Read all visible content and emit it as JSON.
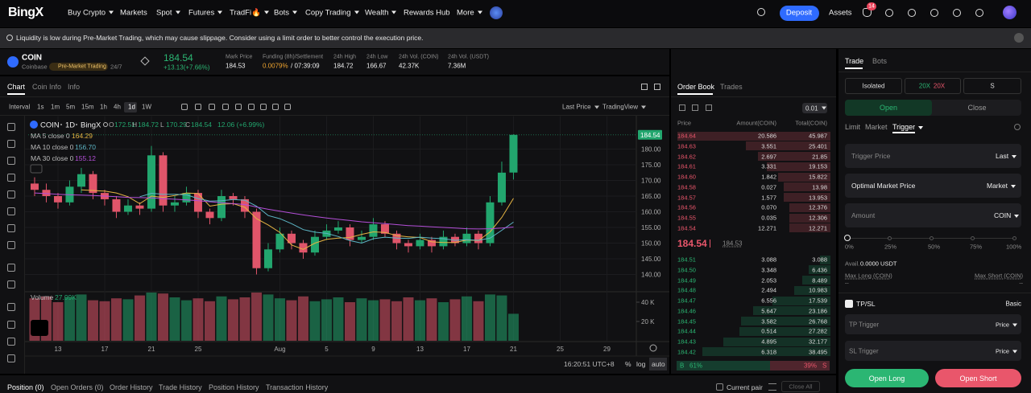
{
  "nav": {
    "logo": "BingX",
    "items": [
      "Buy Crypto",
      "Markets",
      "Spot",
      "Futures",
      "TradFi🔥",
      "Bots",
      "Copy Trading",
      "Wealth",
      "Rewards Hub",
      "More"
    ],
    "deposit": "Deposit",
    "assets": "Assets",
    "badge": "14"
  },
  "notice": {
    "text": "Liquidity is low during Pre-Market Trading, which may cause slippage. Consider using a limit order to better control the execution price."
  },
  "ticker": {
    "symbol": "COIN",
    "exchange": "Coinbase",
    "tag": "Pre-Market Trading",
    "hours": "24/7",
    "price": "184.54",
    "change": "+13.13(+7.66%)",
    "stats": [
      {
        "label": "Mark Price",
        "value": "184.53"
      },
      {
        "label": "Funding (8h)/Settlement",
        "value": "0.0079%",
        "extra": "/ 07:39:09"
      },
      {
        "label": "24h High",
        "value": "184.72"
      },
      {
        "label": "24h Low",
        "value": "166.67"
      },
      {
        "label": "24h Vol. (COIN)",
        "value": "42.37K"
      },
      {
        "label": "24h Vol. (USDT)",
        "value": "7.36M"
      }
    ]
  },
  "chart_panel": {
    "tabs": [
      "Chart",
      "Coin Info",
      "Info"
    ],
    "intervals": [
      "Interval",
      "1s",
      "1m",
      "5m",
      "15m",
      "1h",
      "4h",
      "1d",
      "1W"
    ],
    "price_source": "Last Price",
    "provider": "TradingView",
    "time": "16:20:51 UTC+8",
    "controls": [
      "%",
      "log",
      "auto"
    ]
  },
  "chart_data": {
    "type": "candlestick",
    "symbol": "COIN",
    "interval": "1D",
    "source": "BingX",
    "ohlc": [
      {
        "key": "O",
        "value": "172.51"
      },
      {
        "key": "H",
        "value": "184.72"
      },
      {
        "key": "L",
        "value": "170.29"
      },
      {
        "key": "C",
        "value": "184.54"
      }
    ],
    "change": "12.06 (+6.99%)",
    "open": [
      169,
      167,
      165,
      163,
      168,
      172,
      166,
      164,
      160,
      162,
      161,
      178,
      162,
      163,
      166,
      160,
      158,
      165,
      164,
      160,
      142,
      148,
      153,
      150,
      147,
      152,
      154,
      155,
      151,
      152,
      156,
      153,
      150,
      149,
      151,
      149,
      152,
      150,
      153,
      150,
      163,
      172.51
    ],
    "high": [
      171,
      169,
      166,
      170,
      174,
      173,
      167,
      165,
      164,
      163,
      181,
      179,
      165,
      168,
      167,
      161,
      167,
      166,
      165,
      161,
      150,
      155,
      154,
      151,
      154,
      156,
      157,
      156,
      154,
      158,
      157,
      154,
      151,
      153,
      152,
      154,
      153,
      155,
      154,
      165,
      176,
      184.72
    ],
    "low": [
      165,
      163,
      161,
      162,
      166,
      164,
      162,
      158,
      159,
      159,
      160,
      160,
      160,
      162,
      158,
      156,
      157,
      162,
      158,
      140,
      141,
      147,
      148,
      145,
      146,
      151,
      153,
      149,
      150,
      151,
      152,
      148,
      147,
      148,
      147,
      148,
      149,
      149,
      148,
      149,
      162,
      170.29
    ],
    "close": [
      167,
      165,
      163,
      168,
      172,
      166,
      164,
      160,
      162,
      161,
      178,
      162,
      163,
      166,
      160,
      158,
      165,
      164,
      160,
      142,
      148,
      153,
      150,
      147,
      152,
      154,
      155,
      151,
      152,
      156,
      153,
      150,
      149,
      151,
      149,
      152,
      150,
      153,
      150,
      163,
      172.48,
      184.54
    ],
    "up_color": "#22a66e",
    "down_color": "#e0556a",
    "series": [
      {
        "name": "MA 5 close 0",
        "value_label": "164.29",
        "color": "#e5b443",
        "values": [
          null,
          null,
          null,
          null,
          167,
          166.8,
          166.6,
          166,
          164.8,
          162.6,
          165,
          164.6,
          165.2,
          166,
          165.8,
          161.8,
          162.4,
          162.6,
          161.4,
          157.8,
          155.8,
          153.4,
          149.4,
          148,
          150,
          151.2,
          151.6,
          151.8,
          152.8,
          153.6,
          153.4,
          152.4,
          152,
          151.8,
          150.4,
          150.2,
          150.2,
          151,
          150.8,
          153.6,
          158.2,
          164.29
        ]
      },
      {
        "name": "MA 10 close 0",
        "value_label": "156.70",
        "color": "#5db6c6",
        "values": [
          null,
          null,
          null,
          null,
          null,
          null,
          null,
          null,
          null,
          164.8,
          165.9,
          165.6,
          165.6,
          165.4,
          164.2,
          163.4,
          163.5,
          163.9,
          163.7,
          161.8,
          158.8,
          157.8,
          156.2,
          154.3,
          153.5,
          153.1,
          152.1,
          150.8,
          150,
          151.4,
          151.9,
          151.6,
          151.5,
          151.9,
          151.6,
          151.4,
          150.9,
          151.1,
          150.9,
          151.6,
          154.1,
          156.7
        ]
      },
      {
        "name": "MA 30 close 0",
        "value_label": "155.12",
        "color": "#b44fd8",
        "values": [
          166,
          165.8,
          165.6,
          165.4,
          165.3,
          165.2,
          165,
          164.8,
          164.6,
          164.5,
          164.4,
          164.2,
          164,
          163.8,
          163.5,
          163.2,
          162.9,
          162.6,
          162.3,
          161.5,
          160.8,
          160.2,
          159.6,
          159,
          158.5,
          158,
          157.6,
          157.2,
          156.8,
          156.5,
          156.2,
          155.9,
          155.6,
          155.4,
          155.2,
          155,
          154.8,
          154.6,
          154.5,
          154.6,
          154.8,
          155.12
        ]
      }
    ],
    "ylim": [
      135,
      190
    ],
    "yticks": [
      {
        "value": 140,
        "label": "140.00"
      },
      {
        "value": 145,
        "label": "145.00"
      },
      {
        "value": 150,
        "label": "150.00"
      },
      {
        "value": 155,
        "label": "155.00"
      },
      {
        "value": 160,
        "label": "160.00"
      },
      {
        "value": 165,
        "label": "165.00"
      },
      {
        "value": 170,
        "label": "170.00"
      },
      {
        "value": 175,
        "label": "175.00"
      },
      {
        "value": 180,
        "label": "180.00"
      }
    ],
    "last_price_label": "184.54",
    "xlim": [
      -0.55,
      51.52
    ],
    "xticks": [
      {
        "value": 2,
        "label": "13"
      },
      {
        "value": 6,
        "label": "17"
      },
      {
        "value": 10,
        "label": "21"
      },
      {
        "value": 14,
        "label": "25"
      },
      {
        "value": 21,
        "label": "Aug"
      },
      {
        "value": 25,
        "label": "5"
      },
      {
        "value": 29,
        "label": "9"
      },
      {
        "value": 33,
        "label": "13"
      },
      {
        "value": 37,
        "label": "17"
      },
      {
        "value": 41,
        "label": "21"
      },
      {
        "value": 45,
        "label": "25"
      },
      {
        "value": 49,
        "label": "29"
      }
    ],
    "grid": true,
    "volume": {
      "name": "Volume",
      "value_label": "27.99K",
      "values": [
        44,
        46,
        40,
        45,
        48,
        42,
        41,
        44,
        43,
        47,
        50,
        49,
        45,
        42,
        44,
        41,
        46,
        43,
        45,
        50,
        48,
        44,
        42,
        46,
        41,
        43,
        45,
        40,
        44,
        42,
        43,
        41,
        45,
        42,
        44,
        40,
        43,
        46,
        41,
        48,
        47,
        27.99
      ],
      "ylim": [
        0,
        50
      ],
      "yticks": [
        {
          "value": 20,
          "label": "20 K"
        },
        {
          "value": 40,
          "label": "40 K"
        }
      ]
    }
  },
  "order_book": {
    "tabs": [
      "Order Book",
      "Trades"
    ],
    "precision": "0.01",
    "headers": [
      "Price",
      "Amount(COIN)",
      "Total(COIN)"
    ],
    "asks": [
      [
        "184.64",
        "20.586",
        "45.987"
      ],
      [
        "184.63",
        "3.551",
        "25.401"
      ],
      [
        "184.62",
        "2.697",
        "21.85"
      ],
      [
        "184.61",
        "3.331",
        "19.153"
      ],
      [
        "184.60",
        "1.842",
        "15.822"
      ],
      [
        "184.58",
        "0.027",
        "13.98"
      ],
      [
        "184.57",
        "1.577",
        "13.953"
      ],
      [
        "184.56",
        "0.070",
        "12.376"
      ],
      [
        "184.55",
        "0.035",
        "12.306"
      ],
      [
        "184.54",
        "12.271",
        "12.271"
      ]
    ],
    "last_price": "184.54",
    "mark_price": "184.53",
    "bids": [
      [
        "184.51",
        "3.088",
        "3.088"
      ],
      [
        "184.50",
        "3.348",
        "6.436"
      ],
      [
        "184.49",
        "2.053",
        "8.489"
      ],
      [
        "184.48",
        "2.494",
        "10.983"
      ],
      [
        "184.47",
        "6.556",
        "17.539"
      ],
      [
        "184.46",
        "5.647",
        "23.186"
      ],
      [
        "184.45",
        "3.582",
        "26.768"
      ],
      [
        "184.44",
        "0.514",
        "27.282"
      ],
      [
        "184.43",
        "4.895",
        "32.177"
      ],
      [
        "184.42",
        "6.318",
        "38.495"
      ]
    ],
    "buy_label": "B",
    "buy_ratio": 61,
    "buy_ratio_label": "61%",
    "sell_ratio": 39,
    "sell_ratio_label": "39%",
    "sell_label": "S"
  },
  "trade": {
    "tabs": [
      "Trade",
      "Bots"
    ],
    "margin_mode": "Isolated",
    "leverage_long": "20X",
    "leverage_short": "20X",
    "position_mode": "S",
    "open": "Open",
    "close": "Close",
    "order_types": [
      "Limit",
      "Market",
      "Trigger"
    ],
    "trigger_price": "Trigger Price",
    "trigger_type": "Last",
    "optimal_price": "Optimal Market Price",
    "optimal_type": "Market",
    "amount": "Amount",
    "amount_unit": "COIN",
    "slider": [
      "0%",
      "25%",
      "50%",
      "75%",
      "100%"
    ],
    "avail_label": "Avail.",
    "avail_value": "0.0000 USDT",
    "max_long": "Max Long (COIN)",
    "max_long_value": "--",
    "max_short": "Max Short (COIN)",
    "max_short_value": "--",
    "tpsl": "TP/SL",
    "tpsl_mode": "Basic",
    "tp_trigger": "TP Trigger",
    "tp_unit": "Price",
    "sl_trigger": "SL Trigger",
    "sl_unit": "Price",
    "open_long": "Open Long",
    "open_short": "Open Short"
  },
  "bottom": {
    "tabs": [
      "Position (0)",
      "Open Orders (0)",
      "Order History",
      "Trade History",
      "Position History",
      "Transaction History"
    ],
    "current_pair": "Current pair",
    "close_all": "Close All"
  }
}
